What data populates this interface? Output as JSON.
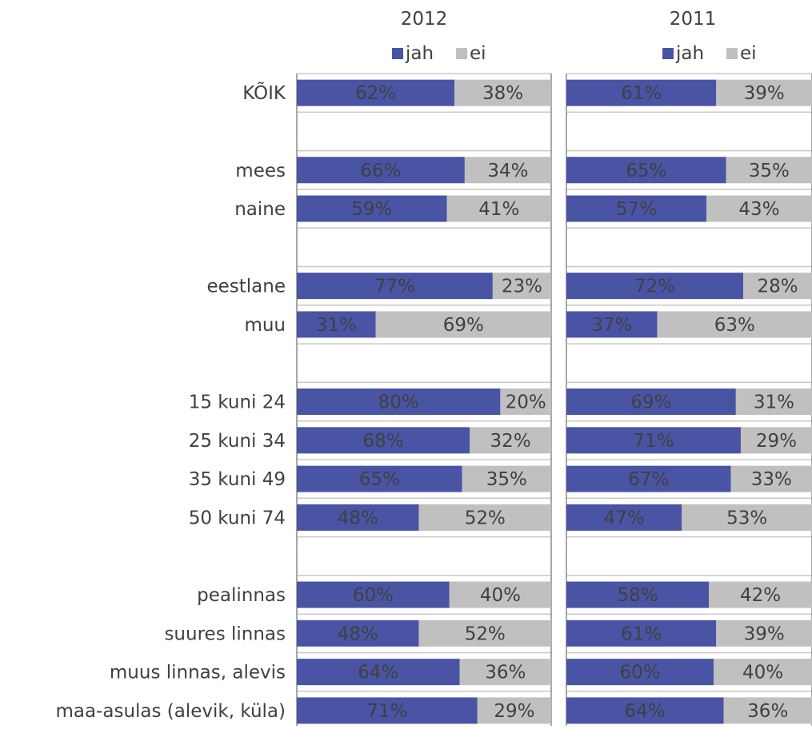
{
  "colors": {
    "jah": "#4a54a5",
    "ei": "#c0c0c0",
    "grid": "#c8c8c8",
    "frame": "#8c8c8c",
    "text": "#404040",
    "value_text": "#404040"
  },
  "chart_data": {
    "type": "bar",
    "stacked": true,
    "orientation": "horizontal",
    "percent": true,
    "xlim": [
      0,
      100
    ],
    "grid": true,
    "legend_placement": "top",
    "categories": [
      "KÕIK",
      "",
      "mees",
      "naine",
      "",
      "eestlane",
      "muu",
      "",
      "15 kuni 24",
      "25 kuni 34",
      "35 kuni 49",
      "50 kuni 74",
      "",
      "pealinnas",
      "suures linnas",
      "muus linnas, alevis",
      "maa-asulas (alevik, küla)"
    ],
    "panels": [
      {
        "title": "2012",
        "series": [
          {
            "name": "jah",
            "values": [
              62,
              null,
              66,
              59,
              null,
              77,
              31,
              null,
              80,
              68,
              65,
              48,
              null,
              60,
              48,
              64,
              71
            ]
          },
          {
            "name": "ei",
            "values": [
              38,
              null,
              34,
              41,
              null,
              23,
              69,
              null,
              20,
              32,
              35,
              52,
              null,
              40,
              52,
              36,
              29
            ]
          }
        ]
      },
      {
        "title": "2011",
        "series": [
          {
            "name": "jah",
            "values": [
              61,
              null,
              65,
              57,
              null,
              72,
              37,
              null,
              69,
              71,
              67,
              47,
              null,
              58,
              61,
              60,
              64
            ]
          },
          {
            "name": "ei",
            "values": [
              39,
              null,
              35,
              43,
              null,
              28,
              63,
              null,
              31,
              29,
              33,
              53,
              null,
              42,
              39,
              40,
              36
            ]
          }
        ]
      }
    ]
  }
}
